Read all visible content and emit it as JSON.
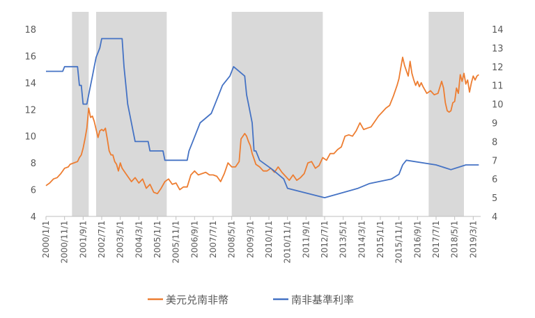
{
  "chart_data": {
    "type": "line",
    "title": "",
    "xlabel": "",
    "ylabel": "",
    "legend_position": "bottom",
    "grid": false,
    "x_range": [
      "2000-01-01",
      "2019-07-01"
    ],
    "y_left": {
      "min": 4,
      "max": 18,
      "ticks": [
        "4",
        "6",
        "8",
        "10",
        "12",
        "14",
        "16",
        "18"
      ]
    },
    "y_right": {
      "min": 4,
      "max": 14,
      "ticks": [
        "4",
        "5",
        "6",
        "7",
        "8",
        "9",
        "10",
        "11",
        "12",
        "13",
        "14"
      ]
    },
    "x_tick_labels": [
      {
        "date": "2000-01-01",
        "label": "2000/1/1"
      },
      {
        "date": "2000-11-01",
        "label": "2000/11/1"
      },
      {
        "date": "2001-09-01",
        "label": "2001/9/1"
      },
      {
        "date": "2002-07-01",
        "label": "2002/7/1"
      },
      {
        "date": "2003-05-01",
        "label": "2003/5/1"
      },
      {
        "date": "2004-03-01",
        "label": "2004/3/1"
      },
      {
        "date": "2005-01-01",
        "label": "2005/1/1"
      },
      {
        "date": "2005-11-01",
        "label": "2005/11/1"
      },
      {
        "date": "2006-09-01",
        "label": "2006/9/1"
      },
      {
        "date": "2007-07-01",
        "label": "2007/7/1"
      },
      {
        "date": "2008-05-01",
        "label": "2008/5/1"
      },
      {
        "date": "2009-03-01",
        "label": "2009/3/1"
      },
      {
        "date": "2010-01-01",
        "label": "2010/1/1"
      },
      {
        "date": "2010-11-01",
        "label": "2010/11/1"
      },
      {
        "date": "2011-09-01",
        "label": "2011/9/1"
      },
      {
        "date": "2012-07-01",
        "label": "2012/7/1"
      },
      {
        "date": "2013-05-01",
        "label": "2013/5/1"
      },
      {
        "date": "2014-03-01",
        "label": "2014/3/1"
      },
      {
        "date": "2015-01-01",
        "label": "2015/1/1"
      },
      {
        "date": "2015-11-01",
        "label": "2015/11/1"
      },
      {
        "date": "2016-09-01",
        "label": "2016/9/1"
      },
      {
        "date": "2017-07-01",
        "label": "2017/7/1"
      },
      {
        "date": "2018-05-01",
        "label": "2018/5/1"
      },
      {
        "date": "2019-03-01",
        "label": "2019/3/1"
      }
    ],
    "shaded_periods": [
      {
        "start": "2001-03-01",
        "end": "2001-12-01"
      },
      {
        "start": "2002-04-01",
        "end": "2005-06-01"
      },
      {
        "start": "2008-05-01",
        "end": "2012-06-01"
      },
      {
        "start": "2017-03-01",
        "end": "2018-10-01"
      }
    ],
    "series": [
      {
        "name": "美元兑南非幣",
        "axis": "left",
        "color": "#ED7D31",
        "points": [
          [
            "2000-01-01",
            6.3
          ],
          [
            "2000-03-01",
            6.5
          ],
          [
            "2000-05-01",
            6.8
          ],
          [
            "2000-07-01",
            6.9
          ],
          [
            "2000-09-01",
            7.2
          ],
          [
            "2000-11-01",
            7.6
          ],
          [
            "2001-01-01",
            7.7
          ],
          [
            "2001-02-01",
            7.9
          ],
          [
            "2001-04-01",
            8.0
          ],
          [
            "2001-06-01",
            8.1
          ],
          [
            "2001-07-01",
            8.4
          ],
          [
            "2001-08-01",
            8.6
          ],
          [
            "2001-09-01",
            9.1
          ],
          [
            "2001-10-01",
            9.8
          ],
          [
            "2001-11-01",
            10.6
          ],
          [
            "2001-12-01",
            12.1
          ],
          [
            "2002-01-01",
            11.4
          ],
          [
            "2002-02-01",
            11.5
          ],
          [
            "2002-03-01",
            11.1
          ],
          [
            "2002-04-01",
            10.5
          ],
          [
            "2002-05-01",
            9.9
          ],
          [
            "2002-06-01",
            10.4
          ],
          [
            "2002-07-01",
            10.5
          ],
          [
            "2002-08-01",
            10.4
          ],
          [
            "2002-09-01",
            10.6
          ],
          [
            "2002-10-01",
            9.8
          ],
          [
            "2002-11-01",
            8.9
          ],
          [
            "2002-12-01",
            8.6
          ],
          [
            "2003-01-01",
            8.6
          ],
          [
            "2003-02-01",
            8.1
          ],
          [
            "2003-03-01",
            7.9
          ],
          [
            "2003-04-01",
            7.4
          ],
          [
            "2003-05-01",
            8.0
          ],
          [
            "2003-06-01",
            7.6
          ],
          [
            "2003-07-01",
            7.4
          ],
          [
            "2003-09-01",
            7.0
          ],
          [
            "2003-11-01",
            6.6
          ],
          [
            "2004-01-01",
            6.9
          ],
          [
            "2004-03-01",
            6.5
          ],
          [
            "2004-05-01",
            6.8
          ],
          [
            "2004-07-01",
            6.1
          ],
          [
            "2004-09-01",
            6.4
          ],
          [
            "2004-11-01",
            5.8
          ],
          [
            "2005-01-01",
            5.7
          ],
          [
            "2005-03-01",
            6.1
          ],
          [
            "2005-05-01",
            6.6
          ],
          [
            "2005-07-01",
            6.8
          ],
          [
            "2005-09-01",
            6.4
          ],
          [
            "2005-11-01",
            6.5
          ],
          [
            "2006-01-01",
            6.0
          ],
          [
            "2006-03-01",
            6.2
          ],
          [
            "2006-05-01",
            6.2
          ],
          [
            "2006-07-01",
            7.1
          ],
          [
            "2006-09-01",
            7.4
          ],
          [
            "2006-11-01",
            7.1
          ],
          [
            "2007-01-01",
            7.2
          ],
          [
            "2007-03-01",
            7.3
          ],
          [
            "2007-05-01",
            7.1
          ],
          [
            "2007-07-01",
            7.1
          ],
          [
            "2007-09-01",
            7.0
          ],
          [
            "2007-11-01",
            6.6
          ],
          [
            "2008-01-01",
            7.2
          ],
          [
            "2008-03-01",
            8.0
          ],
          [
            "2008-05-01",
            7.7
          ],
          [
            "2008-07-01",
            7.7
          ],
          [
            "2008-09-01",
            8.1
          ],
          [
            "2008-10-01",
            9.8
          ],
          [
            "2008-11-01",
            10.0
          ],
          [
            "2008-12-01",
            10.2
          ],
          [
            "2009-01-01",
            10.0
          ],
          [
            "2009-02-01",
            9.6
          ],
          [
            "2009-03-01",
            9.3
          ],
          [
            "2009-04-01",
            8.7
          ],
          [
            "2009-05-01",
            8.3
          ],
          [
            "2009-06-01",
            7.9
          ],
          [
            "2009-08-01",
            7.7
          ],
          [
            "2009-10-01",
            7.4
          ],
          [
            "2009-12-01",
            7.4
          ],
          [
            "2010-02-01",
            7.6
          ],
          [
            "2010-04-01",
            7.3
          ],
          [
            "2010-06-01",
            7.7
          ],
          [
            "2010-08-01",
            7.3
          ],
          [
            "2010-10-01",
            7.0
          ],
          [
            "2010-12-01",
            6.7
          ],
          [
            "2011-02-01",
            7.1
          ],
          [
            "2011-04-01",
            6.7
          ],
          [
            "2011-06-01",
            6.9
          ],
          [
            "2011-08-01",
            7.2
          ],
          [
            "2011-10-01",
            8.0
          ],
          [
            "2011-12-01",
            8.1
          ],
          [
            "2012-02-01",
            7.6
          ],
          [
            "2012-04-01",
            7.8
          ],
          [
            "2012-06-01",
            8.4
          ],
          [
            "2012-08-01",
            8.2
          ],
          [
            "2012-10-01",
            8.7
          ],
          [
            "2012-12-01",
            8.7
          ],
          [
            "2013-02-01",
            9.0
          ],
          [
            "2013-04-01",
            9.2
          ],
          [
            "2013-06-01",
            10.0
          ],
          [
            "2013-08-01",
            10.1
          ],
          [
            "2013-10-01",
            10.0
          ],
          [
            "2013-12-01",
            10.4
          ],
          [
            "2014-02-01",
            11.0
          ],
          [
            "2014-04-01",
            10.5
          ],
          [
            "2014-06-01",
            10.6
          ],
          [
            "2014-08-01",
            10.7
          ],
          [
            "2014-10-01",
            11.1
          ],
          [
            "2014-12-01",
            11.5
          ],
          [
            "2015-02-01",
            11.8
          ],
          [
            "2015-04-01",
            12.1
          ],
          [
            "2015-06-01",
            12.3
          ],
          [
            "2015-08-01",
            13.0
          ],
          [
            "2015-10-01",
            13.8
          ],
          [
            "2015-11-01",
            14.3
          ],
          [
            "2015-12-01",
            15.1
          ],
          [
            "2016-01-01",
            15.9
          ],
          [
            "2016-02-01",
            15.3
          ],
          [
            "2016-03-01",
            14.9
          ],
          [
            "2016-04-01",
            14.5
          ],
          [
            "2016-05-01",
            15.6
          ],
          [
            "2016-06-01",
            14.7
          ],
          [
            "2016-07-01",
            14.2
          ],
          [
            "2016-08-01",
            13.8
          ],
          [
            "2016-09-01",
            14.1
          ],
          [
            "2016-10-01",
            13.7
          ],
          [
            "2016-11-01",
            14.0
          ],
          [
            "2016-12-01",
            13.7
          ],
          [
            "2017-02-01",
            13.2
          ],
          [
            "2017-04-01",
            13.4
          ],
          [
            "2017-06-01",
            13.1
          ],
          [
            "2017-08-01",
            13.2
          ],
          [
            "2017-10-01",
            14.1
          ],
          [
            "2017-11-01",
            13.6
          ],
          [
            "2017-12-01",
            12.5
          ],
          [
            "2018-01-01",
            11.9
          ],
          [
            "2018-02-01",
            11.8
          ],
          [
            "2018-03-01",
            11.9
          ],
          [
            "2018-04-01",
            12.5
          ],
          [
            "2018-05-01",
            12.6
          ],
          [
            "2018-06-01",
            13.6
          ],
          [
            "2018-07-01",
            13.2
          ],
          [
            "2018-08-01",
            14.6
          ],
          [
            "2018-09-01",
            14.1
          ],
          [
            "2018-10-01",
            14.7
          ],
          [
            "2018-11-01",
            13.9
          ],
          [
            "2018-12-01",
            14.2
          ],
          [
            "2019-01-01",
            13.3
          ],
          [
            "2019-02-01",
            14.0
          ],
          [
            "2019-03-01",
            14.5
          ],
          [
            "2019-04-01",
            14.2
          ],
          [
            "2019-05-01",
            14.5
          ],
          [
            "2019-06-01",
            14.6
          ]
        ]
      },
      {
        "name": "南非基準利率",
        "axis": "right",
        "color": "#4472C4",
        "points": [
          [
            "2000-01-01",
            11.75
          ],
          [
            "2000-10-01",
            11.75
          ],
          [
            "2000-11-01",
            12.0
          ],
          [
            "2001-06-01",
            12.0
          ],
          [
            "2001-07-01",
            11.0
          ],
          [
            "2001-08-01",
            11.0
          ],
          [
            "2001-09-01",
            10.0
          ],
          [
            "2001-11-01",
            10.0
          ],
          [
            "2001-12-01",
            10.5
          ],
          [
            "2002-01-01",
            11.0
          ],
          [
            "2002-02-01",
            11.5
          ],
          [
            "2002-03-01",
            12.0
          ],
          [
            "2002-04-01",
            12.5
          ],
          [
            "2002-06-01",
            13.0
          ],
          [
            "2002-07-01",
            13.5
          ],
          [
            "2003-06-01",
            13.5
          ],
          [
            "2003-07-01",
            12.0
          ],
          [
            "2003-08-01",
            11.0
          ],
          [
            "2003-09-01",
            10.0
          ],
          [
            "2003-10-01",
            9.5
          ],
          [
            "2003-12-01",
            8.5
          ],
          [
            "2004-01-01",
            8.0
          ],
          [
            "2004-08-01",
            8.0
          ],
          [
            "2004-09-01",
            7.5
          ],
          [
            "2005-04-01",
            7.5
          ],
          [
            "2005-05-01",
            7.0
          ],
          [
            "2006-05-01",
            7.0
          ],
          [
            "2006-06-01",
            7.5
          ],
          [
            "2006-08-01",
            8.0
          ],
          [
            "2006-10-01",
            8.5
          ],
          [
            "2006-12-01",
            9.0
          ],
          [
            "2007-06-01",
            9.5
          ],
          [
            "2007-08-01",
            10.0
          ],
          [
            "2007-10-01",
            10.5
          ],
          [
            "2007-12-01",
            11.0
          ],
          [
            "2008-04-01",
            11.5
          ],
          [
            "2008-06-01",
            12.0
          ],
          [
            "2008-12-01",
            11.5
          ],
          [
            "2009-01-01",
            10.5
          ],
          [
            "2009-02-01",
            10.0
          ],
          [
            "2009-04-01",
            9.0
          ],
          [
            "2009-05-01",
            7.5
          ],
          [
            "2009-06-01",
            7.5
          ],
          [
            "2009-08-01",
            7.0
          ],
          [
            "2010-03-01",
            6.5
          ],
          [
            "2010-09-01",
            6.0
          ],
          [
            "2010-11-01",
            5.5
          ],
          [
            "2012-07-01",
            5.0
          ],
          [
            "2014-01-01",
            5.5
          ],
          [
            "2014-07-01",
            5.75
          ],
          [
            "2015-07-01",
            6.0
          ],
          [
            "2015-11-01",
            6.25
          ],
          [
            "2016-01-01",
            6.75
          ],
          [
            "2016-03-01",
            7.0
          ],
          [
            "2017-07-01",
            6.75
          ],
          [
            "2018-03-01",
            6.5
          ],
          [
            "2018-11-01",
            6.75
          ],
          [
            "2019-06-01",
            6.75
          ]
        ]
      }
    ]
  }
}
